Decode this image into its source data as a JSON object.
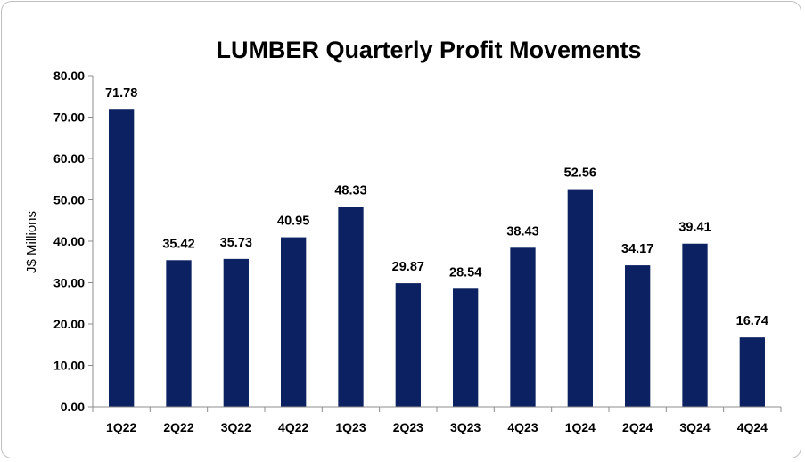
{
  "chart_data": {
    "type": "bar",
    "title": "LUMBER Quarterly Profit Movements",
    "xlabel": "",
    "ylabel": "J$ Millions",
    "ylim": [
      0,
      80
    ],
    "yticks": [
      "0.00",
      "10.00",
      "20.00",
      "30.00",
      "40.00",
      "50.00",
      "60.00",
      "70.00",
      "80.00"
    ],
    "categories": [
      "1Q22",
      "2Q22",
      "3Q22",
      "4Q22",
      "1Q23",
      "2Q23",
      "3Q23",
      "4Q23",
      "1Q24",
      "2Q24",
      "3Q24",
      "4Q24"
    ],
    "values": [
      71.78,
      35.42,
      35.73,
      40.95,
      48.33,
      29.87,
      28.54,
      38.43,
      52.56,
      34.17,
      39.41,
      16.74
    ],
    "value_labels": [
      "71.78",
      "35.42",
      "35.73",
      "40.95",
      "48.33",
      "29.87",
      "28.54",
      "38.43",
      "52.56",
      "34.17",
      "39.41",
      "16.74"
    ],
    "bar_color": "#0b2161",
    "grid": false,
    "legend": "none"
  }
}
